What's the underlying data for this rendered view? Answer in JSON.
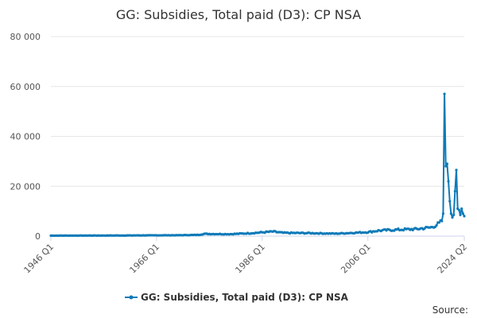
{
  "colors": {
    "series": "#0d7ab8",
    "grid": "#e6e6e6",
    "axis": "#ccd6eb"
  },
  "chart_data": {
    "type": "line",
    "title": "GG: Subsidies, Total paid (D3): CP NSA",
    "xlabel": "",
    "ylabel": "",
    "ylim": [
      0,
      80000
    ],
    "yticks": [
      0,
      20000,
      40000,
      60000,
      80000
    ],
    "ytick_labels": [
      "0",
      "20 000",
      "40 000",
      "60 000",
      "80 000"
    ],
    "xlim": [
      1946.0,
      2024.25
    ],
    "xticks": [
      1946.0,
      1966.0,
      1986.0,
      2006.0,
      2024.25
    ],
    "xtick_labels": [
      "1946 Q1",
      "1966 Q1",
      "1986 Q1",
      "2006 Q1",
      "2024 Q2"
    ],
    "grid": true,
    "legend_position": "bottom",
    "source": "Source:",
    "series": [
      {
        "name": "GG: Subsidies, Total paid (D3): CP NSA",
        "anchors": [
          [
            1946.0,
            200
          ],
          [
            1960.0,
            250
          ],
          [
            1970.0,
            350
          ],
          [
            1974.0,
            500
          ],
          [
            1975.0,
            900
          ],
          [
            1980.0,
            800
          ],
          [
            1984.0,
            1200
          ],
          [
            1988.0,
            1800
          ],
          [
            1990.0,
            1300
          ],
          [
            1995.0,
            1200
          ],
          [
            2000.0,
            1000
          ],
          [
            2006.0,
            1600
          ],
          [
            2008.0,
            2200
          ],
          [
            2012.0,
            2600
          ],
          [
            2015.0,
            2800
          ],
          [
            2018.0,
            3500
          ],
          [
            2019.5,
            5000
          ],
          [
            2020.0,
            6000
          ],
          [
            2020.25,
            9000
          ],
          [
            2020.5,
            57000
          ],
          [
            2020.75,
            28000
          ],
          [
            2021.0,
            29000
          ],
          [
            2021.25,
            22000
          ],
          [
            2021.5,
            14000
          ],
          [
            2021.75,
            9000
          ],
          [
            2022.0,
            7500
          ],
          [
            2022.25,
            8500
          ],
          [
            2022.5,
            18000
          ],
          [
            2022.75,
            26500
          ],
          [
            2023.0,
            11000
          ],
          [
            2023.25,
            10500
          ],
          [
            2023.5,
            8500
          ],
          [
            2023.75,
            11000
          ],
          [
            2024.0,
            9000
          ],
          [
            2024.25,
            8000
          ]
        ]
      }
    ]
  }
}
